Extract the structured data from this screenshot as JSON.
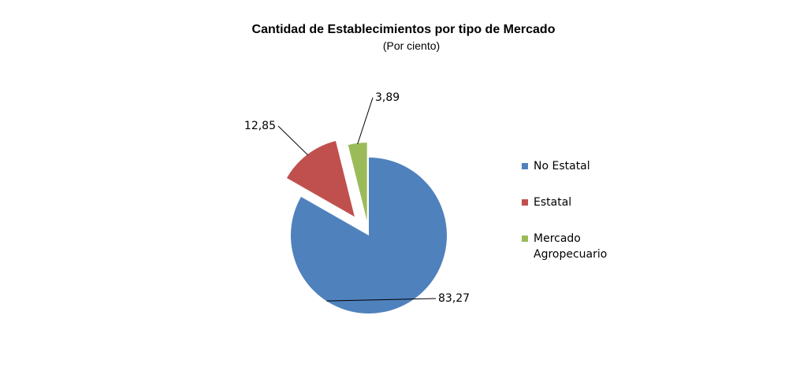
{
  "chart_data": {
    "type": "pie",
    "title": "Cantidad de Establecimientos por tipo de Mercado",
    "subtitle": "(Por ciento)",
    "slices": [
      {
        "label": "No Estatal",
        "value": 83.27,
        "display": "83,27",
        "color": "#4F81BD"
      },
      {
        "label": "Estatal",
        "value": 12.85,
        "display": "12,85",
        "color": "#C0504D"
      },
      {
        "label": "Mercado Agropecuario",
        "value": 3.89,
        "display": "3,89",
        "color": "#9BBB59"
      }
    ],
    "legend_position": "right"
  }
}
